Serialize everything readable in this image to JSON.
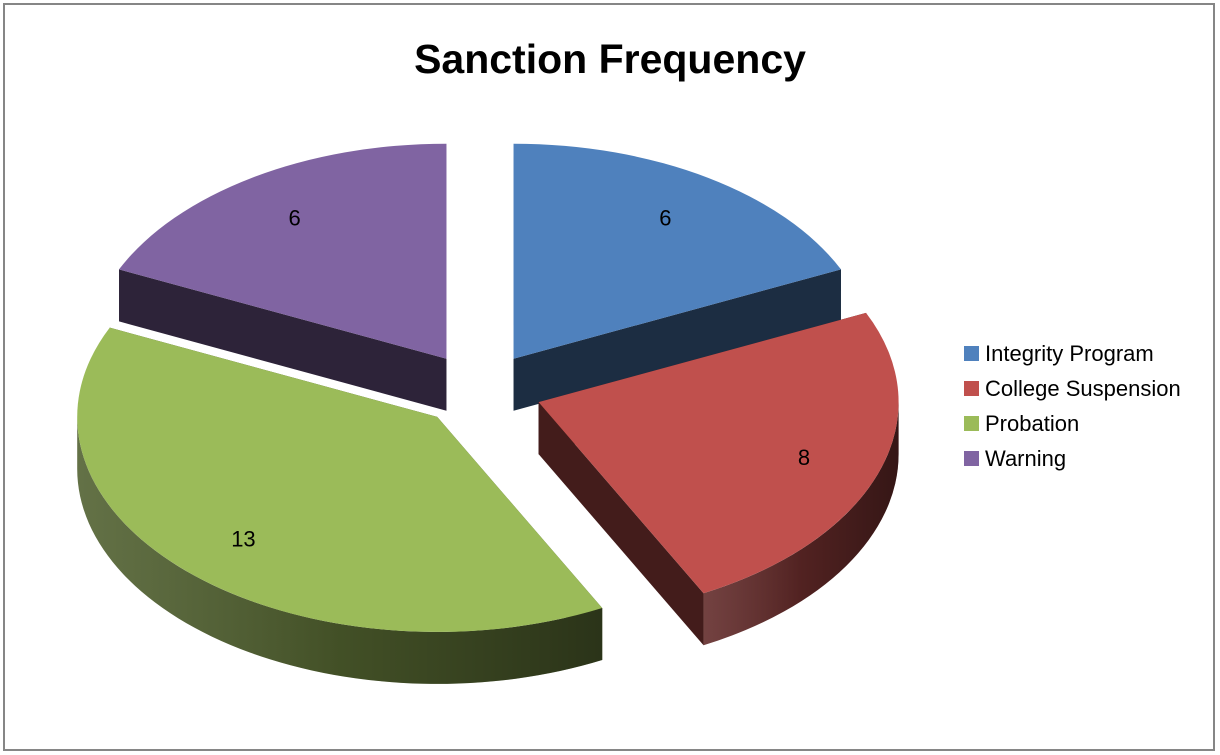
{
  "chart_data": {
    "type": "pie",
    "title": "Sanction Frequency",
    "style": "3d-exploded",
    "legend_position": "right",
    "slices": [
      {
        "label": "Integrity Program",
        "value": 6,
        "color": "#4F81BD"
      },
      {
        "label": "College Suspension",
        "value": 8,
        "color": "#C0504D"
      },
      {
        "label": "Probation",
        "value": 13,
        "color": "#9BBB59"
      },
      {
        "label": "Warning",
        "value": 6,
        "color": "#8064A2"
      }
    ]
  }
}
